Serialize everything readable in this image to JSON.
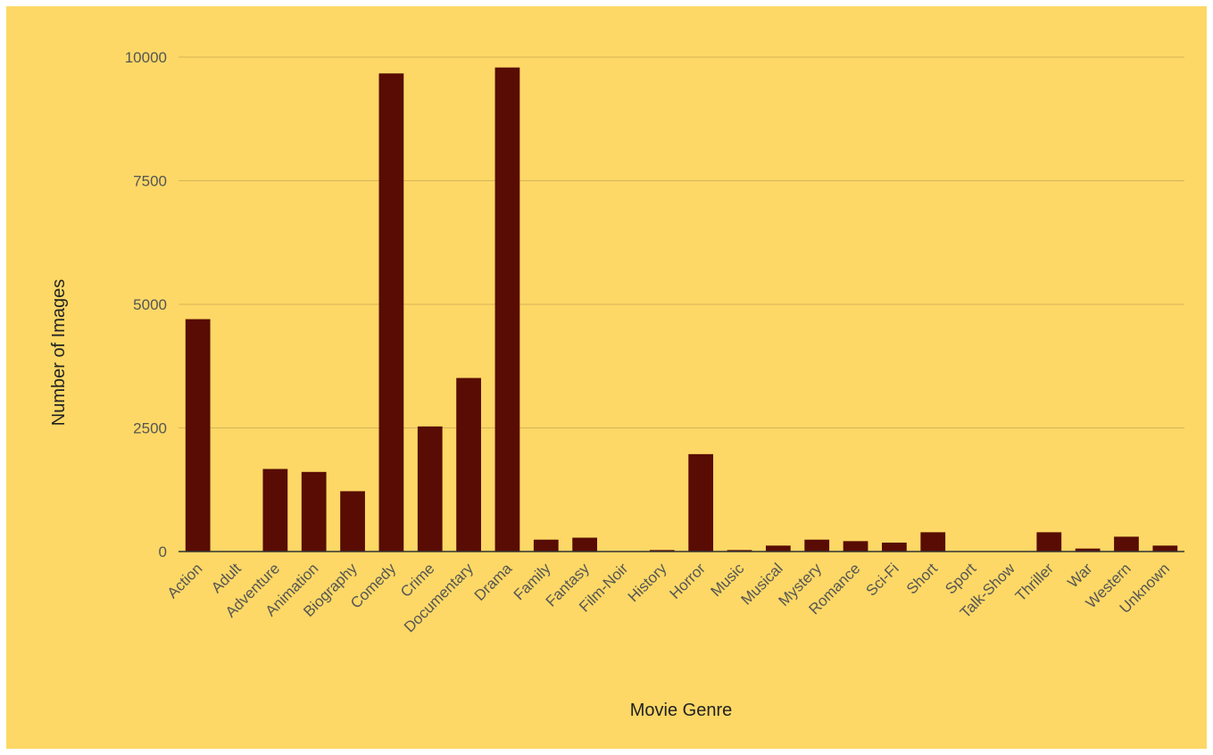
{
  "chart_data": {
    "type": "bar",
    "title": "",
    "xlabel": "Movie Genre",
    "ylabel": "Number of Images",
    "ylim": [
      0,
      10000
    ],
    "yticks": [
      0,
      2500,
      5000,
      7500,
      10000
    ],
    "grid": true,
    "legend": "none",
    "categories": [
      "Action",
      "Adult",
      "Adventure",
      "Animation",
      "Biography",
      "Comedy",
      "Crime",
      "Documentary",
      "Drama",
      "Family",
      "Fantasy",
      "Film-Noir",
      "History",
      "Horror",
      "Music",
      "Musical",
      "Mystery",
      "Romance",
      "Sci-Fi",
      "Short",
      "Sport",
      "Talk-Show",
      "Thriller",
      "War",
      "Western",
      "Unknown"
    ],
    "series": [
      {
        "values": [
          4700,
          0,
          1670,
          1610,
          1220,
          9670,
          2530,
          3510,
          9790,
          240,
          280,
          0,
          30,
          1970,
          30,
          120,
          240,
          210,
          180,
          390,
          0,
          0,
          390,
          60,
          300,
          120
        ]
      }
    ],
    "colors": {
      "background": "#fdd866",
      "bar": "#580c04",
      "gridline": "#d6b45a",
      "axis": "#333333"
    }
  }
}
